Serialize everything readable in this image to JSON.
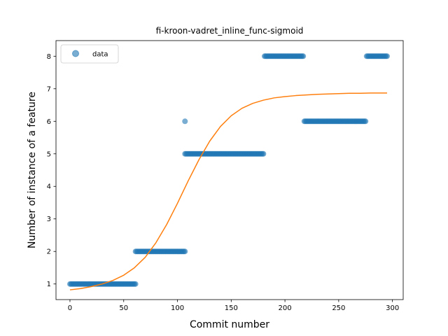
{
  "chart_data": {
    "type": "scatter",
    "title": "fi-kroon-vadret_inline_func-sigmoid",
    "xlabel": "Commit number",
    "ylabel": "Number of instance of a feature",
    "xlim": [
      -13,
      310
    ],
    "ylim": [
      0.52,
      8.48
    ],
    "xticks": [
      0,
      50,
      100,
      150,
      200,
      250,
      300
    ],
    "yticks": [
      1,
      2,
      3,
      4,
      5,
      6,
      7,
      8
    ],
    "legend": {
      "position": "top-left",
      "entries": [
        "data"
      ]
    },
    "colors": {
      "data": "#1f77b4",
      "fit": "#ff7f0e"
    },
    "series": [
      {
        "name": "data",
        "kind": "scatter",
        "segments": [
          {
            "x_start": 0,
            "x_end": 61,
            "y": 1
          },
          {
            "x_start": 61,
            "x_end": 107,
            "y": 2
          },
          {
            "x_start": 107,
            "x_end": 107,
            "y": 6
          },
          {
            "x_start": 107,
            "x_end": 180,
            "y": 5
          },
          {
            "x_start": 181,
            "x_end": 217,
            "y": 8
          },
          {
            "x_start": 218,
            "x_end": 275,
            "y": 6
          },
          {
            "x_start": 276,
            "x_end": 295,
            "y": 8
          }
        ]
      },
      {
        "kind": "line",
        "x": [
          0,
          10,
          20,
          30,
          40,
          50,
          60,
          70,
          80,
          90,
          100,
          110,
          120,
          130,
          140,
          150,
          160,
          170,
          180,
          190,
          200,
          210,
          220,
          230,
          240,
          250,
          260,
          270,
          280,
          290,
          295
        ],
        "y": [
          0.82,
          0.86,
          0.92,
          1.0,
          1.11,
          1.27,
          1.5,
          1.82,
          2.27,
          2.83,
          3.48,
          4.17,
          4.82,
          5.39,
          5.84,
          6.17,
          6.4,
          6.55,
          6.65,
          6.72,
          6.76,
          6.79,
          6.81,
          6.83,
          6.84,
          6.85,
          6.86,
          6.86,
          6.87,
          6.87,
          6.87
        ]
      }
    ]
  }
}
